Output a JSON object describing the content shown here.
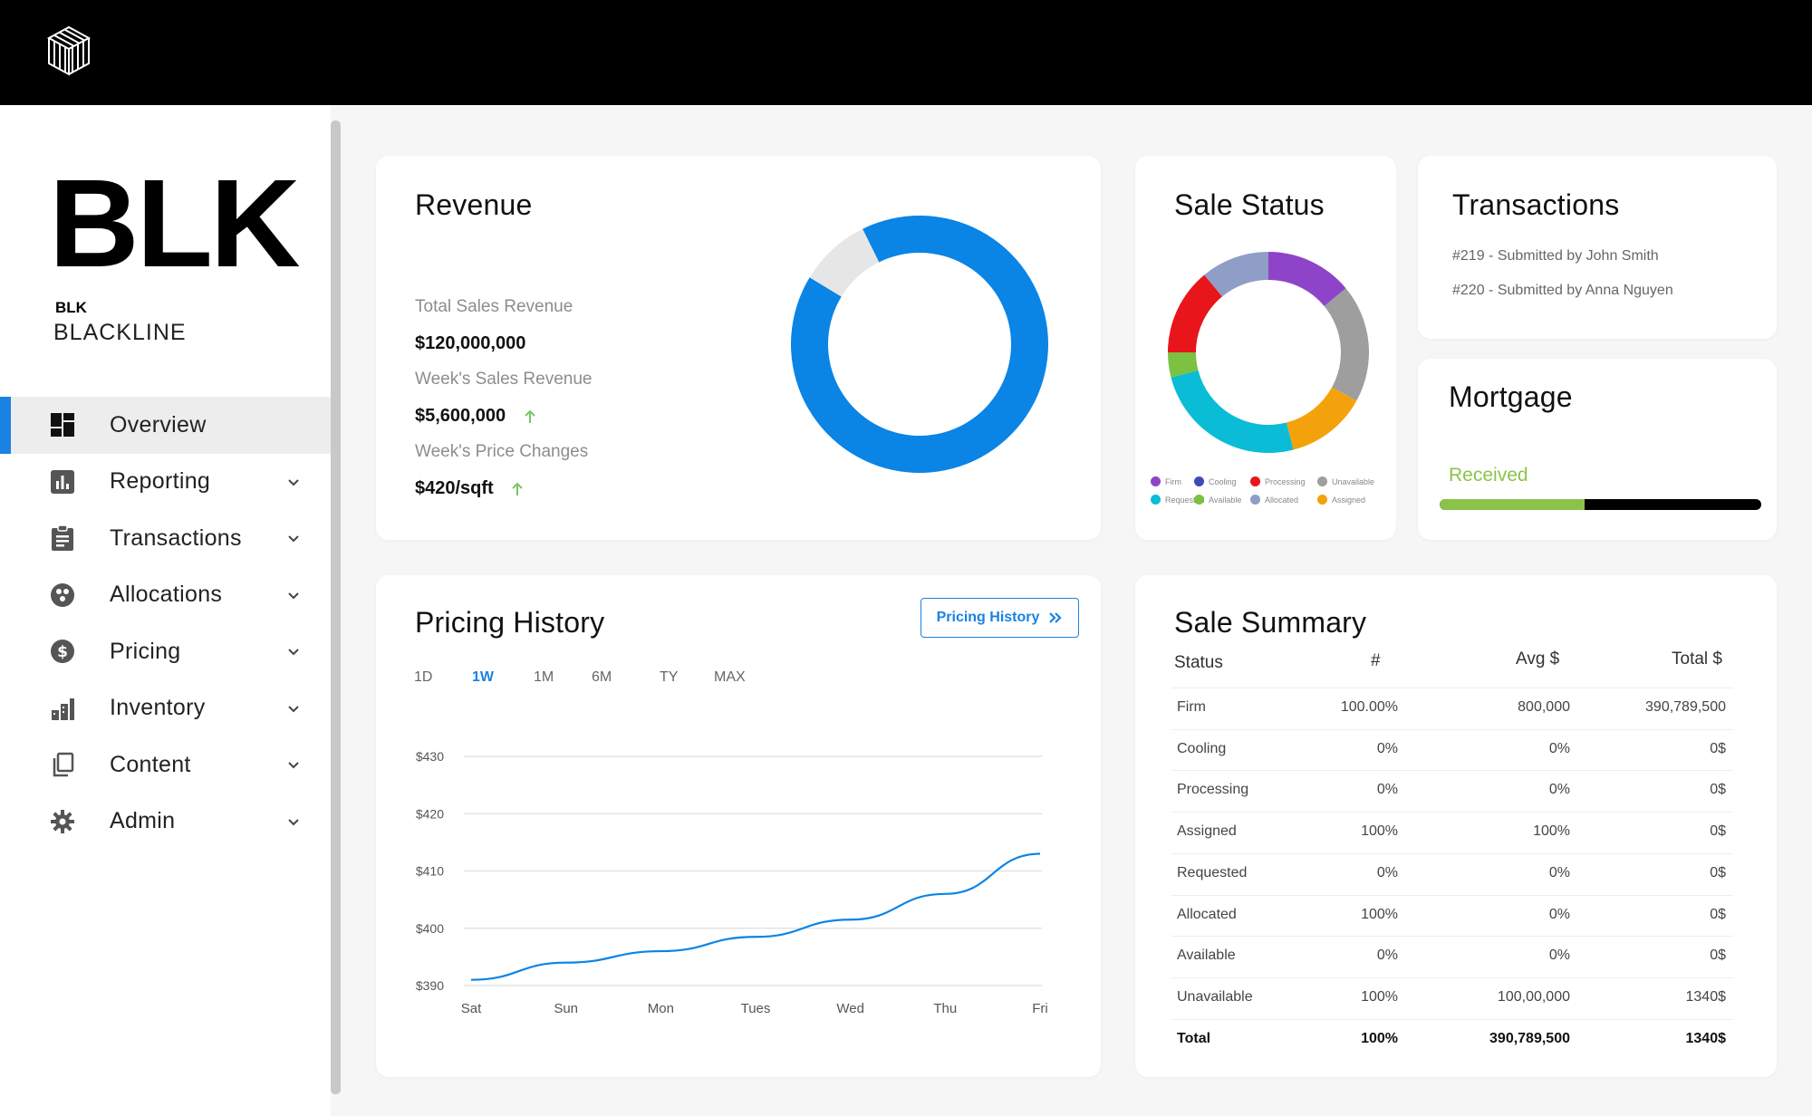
{
  "brand": {
    "logo": "BLK",
    "short": "BLK",
    "name": "BLACKLINE"
  },
  "nav": [
    {
      "label": "Overview",
      "icon": "dashboard-icon",
      "active": true
    },
    {
      "label": "Reporting",
      "icon": "bar-chart-icon"
    },
    {
      "label": "Transactions",
      "icon": "clipboard-icon"
    },
    {
      "label": "Allocations",
      "icon": "allocations-icon"
    },
    {
      "label": "Pricing",
      "icon": "dollar-icon"
    },
    {
      "label": "Inventory",
      "icon": "building-icon"
    },
    {
      "label": "Content",
      "icon": "copy-icon"
    },
    {
      "label": "Admin",
      "icon": "gear-icon"
    }
  ],
  "revenue": {
    "title": "Revenue",
    "total_label": "Total Sales Revenue",
    "total_value": "$120,000,000",
    "week_label": "Week's Sales Revenue",
    "week_value": "$5,600,000",
    "price_label": "Week's Price Changes",
    "price_value": "$420/sqft",
    "donut_fraction": 0.91,
    "colors": {
      "main": "#0a84e5",
      "rest": "#e6e6e6",
      "up": "#7cc36a"
    }
  },
  "sale_status": {
    "title": "Sale Status",
    "legend": [
      {
        "name": "Firm",
        "color": "#8e44c8"
      },
      {
        "name": "Cooling",
        "color": "#3f4ab5"
      },
      {
        "name": "Processing",
        "color": "#e8151b"
      },
      {
        "name": "Unavailable",
        "color": "#9e9e9e"
      },
      {
        "name": "Requested",
        "color": "#0bbcd6"
      },
      {
        "name": "Available",
        "color": "#7cc142"
      },
      {
        "name": "Allocated",
        "color": "#8e9ec6"
      },
      {
        "name": "Assigned",
        "color": "#f4a20c"
      }
    ]
  },
  "chart_data": {
    "type": "pie",
    "title": "Sale Status",
    "categories": [
      "Firm",
      "Unavailable",
      "Assigned",
      "Requested",
      "Available",
      "Processing",
      "Allocated"
    ],
    "values": [
      14,
      19,
      13,
      25,
      4,
      14,
      11
    ]
  },
  "transactions": {
    "title": "Transactions",
    "items": [
      "#219 - Submitted by John Smith",
      "#220 - Submitted by Anna Nguyen"
    ]
  },
  "mortgage": {
    "title": "Mortgage",
    "status": "Received",
    "progress": 0.45
  },
  "pricing": {
    "title": "Pricing History",
    "button_label": "Pricing History",
    "ranges": [
      "1D",
      "1W",
      "1M",
      "6M",
      "TY",
      "MAX"
    ],
    "active_range": "1W",
    "chart": {
      "type": "line",
      "x": [
        "Sat",
        "Sun",
        "Mon",
        "Tues",
        "Wed",
        "Thu",
        "Fri"
      ],
      "y": [
        391,
        394,
        396,
        398.5,
        401.5,
        406,
        413
      ],
      "ytick_labels": [
        "$430",
        "$420",
        "$410",
        "$400",
        "$390"
      ],
      "ytick_values": [
        430,
        420,
        410,
        400,
        390
      ],
      "ylim": [
        390,
        430
      ],
      "line_color": "#0a84e5"
    }
  },
  "summary": {
    "title": "Sale Summary",
    "headers": [
      "Status",
      "#",
      "Avg $",
      "Total $"
    ],
    "rows": [
      [
        "Firm",
        "100.00%",
        "800,000",
        "390,789,500"
      ],
      [
        "Cooling",
        "0%",
        "0%",
        "0$"
      ],
      [
        "Processing",
        "0%",
        "0%",
        "0$"
      ],
      [
        "Assigned",
        "100%",
        "100%",
        "0$"
      ],
      [
        "Requested",
        "0%",
        "0%",
        "0$"
      ],
      [
        "Allocated",
        "100%",
        "0%",
        "0$"
      ],
      [
        "Available",
        "0%",
        "0%",
        "0$"
      ],
      [
        "Unavailable",
        "100%",
        "100,00,000",
        "1340$"
      ]
    ],
    "total": [
      "Total",
      "100%",
      "390,789,500",
      "1340$"
    ]
  }
}
